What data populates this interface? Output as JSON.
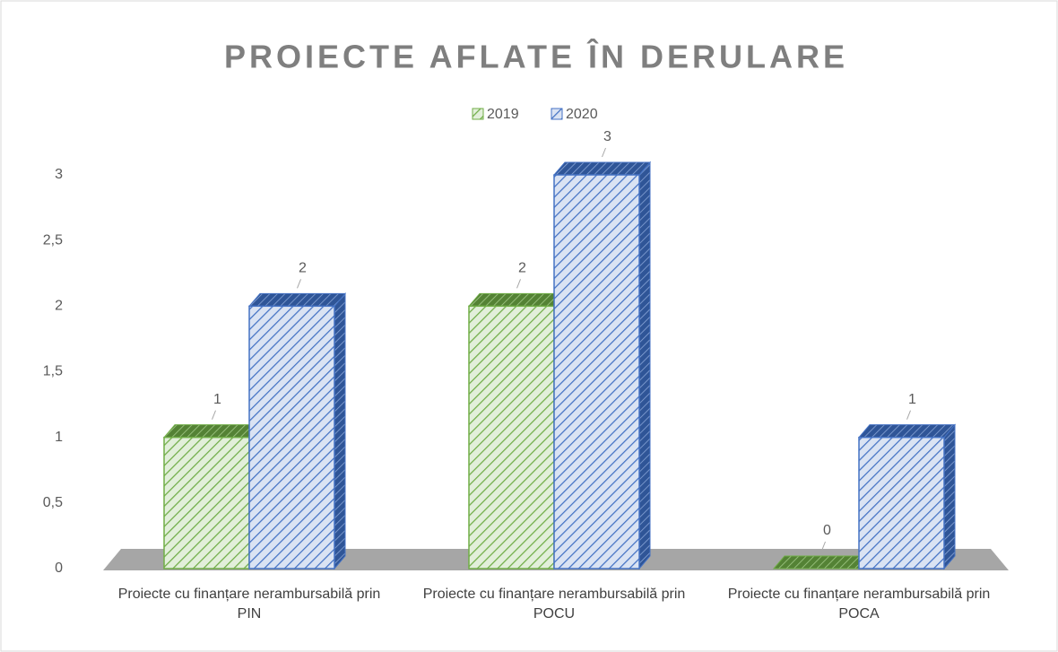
{
  "chart_data": {
    "type": "bar3d",
    "title": "PROIECTE AFLATE ÎN DERULARE",
    "categories": [
      "Proiecte cu finanțare nerambursabilă prin PIN",
      "Proiecte cu finanțare nerambursabilă prin POCU",
      "Proiecte cu finanțare nerambursabilă prin POCA"
    ],
    "series": [
      {
        "name": "2019",
        "color": "#70ad47",
        "values": [
          1,
          2,
          0
        ]
      },
      {
        "name": "2020",
        "color": "#4472c4",
        "values": [
          2,
          3,
          1
        ]
      }
    ],
    "ylim": [
      0,
      3
    ],
    "yticks": [
      0,
      {
        "value": 0.5,
        "label": "0,5"
      },
      1,
      {
        "value": 1.5,
        "label": "1,5"
      },
      2,
      {
        "value": 2.5,
        "label": "2,5"
      },
      3
    ],
    "legend": "top"
  }
}
